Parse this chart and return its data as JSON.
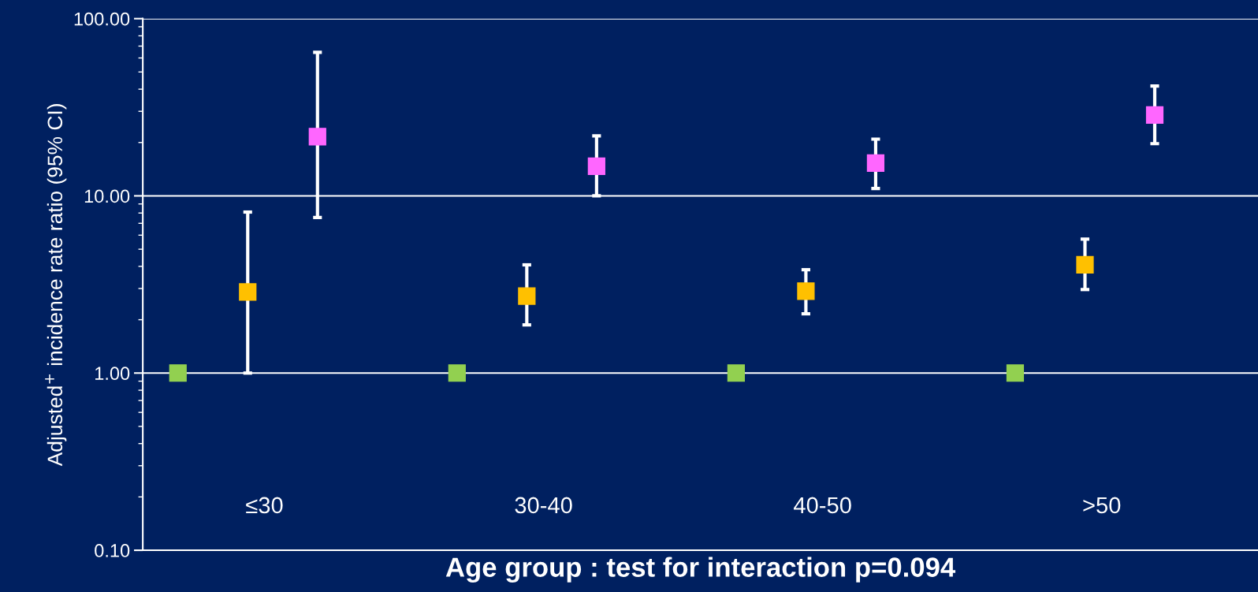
{
  "chart_data": {
    "type": "scatter",
    "xlabel": "Age group : test for interaction p=0.094",
    "ylabel": "Adjusted$^{+}$ incidence rate ratio (95% CI)",
    "categories": [
      "≤30",
      "30-40",
      "40-50",
      ">50"
    ],
    "series": [
      {
        "color": "#92d050",
        "values": [
          1.0,
          1.0,
          1.0,
          1.0
        ]
      },
      {
        "color": "#ffc000",
        "values": [
          2.87,
          2.72,
          2.9,
          4.08
        ],
        "errors": [
          [
            1.0,
            8.1
          ],
          [
            1.87,
            4.08
          ],
          [
            2.16,
            3.83
          ],
          [
            2.96,
            5.7
          ]
        ]
      },
      {
        "color": "#ff66ff",
        "values": [
          21.6,
          14.7,
          15.3,
          28.6
        ],
        "errors": [
          [
            7.55,
            64.6
          ],
          [
            10.0,
            21.8
          ],
          [
            11.0,
            20.9
          ],
          [
            19.7,
            41.7
          ]
        ]
      }
    ],
    "log": "y",
    "ylim": [
      0.1,
      100
    ],
    "yticks": [
      {
        "value": 0.1,
        "label": "0.10"
      },
      {
        "value": 1,
        "label": "1.00"
      },
      {
        "value": 10,
        "label": "10.00"
      },
      {
        "value": 100,
        "label": "100.00"
      }
    ],
    "grid": "y",
    "marker": "square"
  }
}
